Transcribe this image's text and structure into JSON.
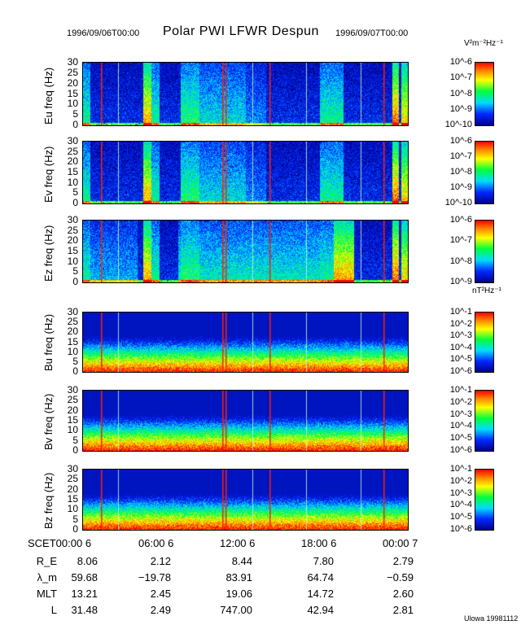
{
  "header": {
    "title": "Polar PWI LFWR Despun",
    "start_date": "1996/09/06T00:00",
    "end_date": "1996/09/07T00:00"
  },
  "units": {
    "electric": "V²m⁻²Hz⁻¹",
    "magnetic": "nT²Hz⁻¹"
  },
  "credit": "Ulowa 19981112",
  "colors": {
    "low": "#00008c",
    "mid": "#00ff00",
    "high": "#ff0000"
  },
  "chart_data": {
    "type": "heatmap",
    "title": "Polar PWI LFWR Despun",
    "xlabel": "SCET",
    "xlim_hours": [
      0,
      24
    ],
    "ylim_hz": [
      0,
      30
    ],
    "ytick_labels": [
      "0",
      "5",
      "10",
      "15",
      "20",
      "25",
      "30"
    ],
    "panels": [
      {
        "name": "Eu",
        "ylabel": "Eu freq (Hz)",
        "kind": "E",
        "colorbar": [
          "10^-6",
          "10^-7",
          "10^-8",
          "10^-9",
          "10^-10"
        ]
      },
      {
        "name": "Ev",
        "ylabel": "Ev freq (Hz)",
        "kind": "E",
        "colorbar": [
          "10^-6",
          "10^-7",
          "10^-8",
          "10^-9",
          "10^-10"
        ]
      },
      {
        "name": "Ez",
        "ylabel": "Ez freq (Hz)",
        "kind": "Ez",
        "colorbar": [
          "10^-6",
          "10^-7",
          "10^-8",
          "10^-9"
        ]
      },
      {
        "name": "Bu",
        "ylabel": "Bu freq (Hz)",
        "kind": "B",
        "colorbar": [
          "10^-1",
          "10^-2",
          "10^-3",
          "10^-4",
          "10^-5",
          "10^-6"
        ]
      },
      {
        "name": "Bv",
        "ylabel": "Bv freq (Hz)",
        "kind": "B",
        "colorbar": [
          "10^-1",
          "10^-2",
          "10^-3",
          "10^-4",
          "10^-5",
          "10^-6"
        ]
      },
      {
        "name": "Bz",
        "ylabel": "Bz freq (Hz)",
        "kind": "B",
        "colorbar": [
          "10^-1",
          "10^-2",
          "10^-3",
          "10^-4",
          "10^-5",
          "10^-6"
        ]
      }
    ]
  },
  "ephemeris": {
    "time_labels": [
      "SCET00:00   6",
      "06:00   6",
      "12:00   6",
      "18:00   6",
      "00:00   7"
    ],
    "rows": [
      {
        "label": "R_E",
        "values": [
          "8.06",
          "2.12",
          "8.44",
          "7.80",
          "2.79"
        ]
      },
      {
        "label": "λ_m",
        "values": [
          "59.68",
          "−19.78",
          "83.91",
          "64.74",
          "−0.59"
        ]
      },
      {
        "label": "MLT",
        "values": [
          "13.21",
          "2.45",
          "19.06",
          "14.72",
          "2.60"
        ]
      },
      {
        "label": "L",
        "values": [
          "31.48",
          "2.49",
          "747.00",
          "42.94",
          "2.81"
        ]
      }
    ]
  }
}
